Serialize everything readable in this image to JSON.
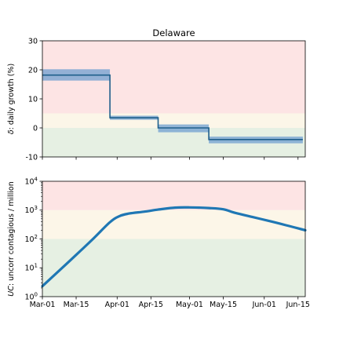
{
  "chart_data": [
    {
      "type": "line",
      "title": "Delaware",
      "ylabel_symbol": "δ",
      "ylabel_rest": ": daily growth (%)",
      "ylim": [
        -10,
        30
      ],
      "yticks": [
        -10,
        0,
        10,
        20,
        30
      ],
      "bands": [
        {
          "from": -10,
          "to": 0,
          "color": "#e6f0e3"
        },
        {
          "from": 0,
          "to": 5,
          "color": "#fcf6e8"
        },
        {
          "from": 5,
          "to": 30,
          "color": "#fde4e4"
        }
      ],
      "series": [
        {
          "line_color": "#1f5f8b",
          "band_color": "#6f9fd0",
          "steps": [
            {
              "start": "2020-03-01",
              "end": "2020-03-29",
              "value": 18.2,
              "low": 16.3,
              "high": 20.2
            },
            {
              "start": "2020-03-29",
              "end": "2020-04-18",
              "value": 3.5,
              "low": 2.8,
              "high": 4.2
            },
            {
              "start": "2020-04-18",
              "end": "2020-05-09",
              "value": 0.0,
              "low": -1.5,
              "high": 1.2
            },
            {
              "start": "2020-05-09",
              "end": "2020-06-17",
              "value": -4.0,
              "low": -5.3,
              "high": -3.0
            }
          ]
        }
      ]
    },
    {
      "type": "line",
      "ylabel_symbol": "UC",
      "ylabel_rest": ": uncorr contagious / million",
      "yscale": "log",
      "ylim": [
        1,
        10000
      ],
      "yticks": [
        {
          "value": 1,
          "base": "10",
          "exp": "0"
        },
        {
          "value": 10,
          "base": "10",
          "exp": "1"
        },
        {
          "value": 100,
          "base": "10",
          "exp": "2"
        },
        {
          "value": 1000,
          "base": "10",
          "exp": "3"
        },
        {
          "value": 10000,
          "base": "10",
          "exp": "4"
        }
      ],
      "bands": [
        {
          "from": 1,
          "to": 100,
          "color": "#e6f0e3"
        },
        {
          "from": 100,
          "to": 1000,
          "color": "#fcf6e8"
        },
        {
          "from": 1000,
          "to": 10000,
          "color": "#fde4e4"
        }
      ],
      "xlim": [
        "2020-03-01",
        "2020-06-18"
      ],
      "xticks": [
        {
          "date": "2020-03-01",
          "label": "Mar-01"
        },
        {
          "date": "2020-03-15",
          "label": "Mar-15"
        },
        {
          "date": "2020-04-01",
          "label": "Apr-01"
        },
        {
          "date": "2020-04-15",
          "label": "Apr-15"
        },
        {
          "date": "2020-05-01",
          "label": "May-01"
        },
        {
          "date": "2020-05-15",
          "label": "May-15"
        },
        {
          "date": "2020-06-01",
          "label": "Jun-01"
        },
        {
          "date": "2020-06-15",
          "label": "Jun-15"
        }
      ],
      "series": [
        {
          "line_color": "#1f77b4",
          "points": [
            {
              "x": "2020-03-01",
              "y": 2.3
            },
            {
              "x": "2020-03-08",
              "y": 8
            },
            {
              "x": "2020-03-15",
              "y": 28
            },
            {
              "x": "2020-03-22",
              "y": 100
            },
            {
              "x": "2020-03-29",
              "y": 380
            },
            {
              "x": "2020-04-02",
              "y": 620
            },
            {
              "x": "2020-04-06",
              "y": 760
            },
            {
              "x": "2020-04-12",
              "y": 880
            },
            {
              "x": "2020-04-18",
              "y": 1040
            },
            {
              "x": "2020-04-25",
              "y": 1220
            },
            {
              "x": "2020-05-01",
              "y": 1240
            },
            {
              "x": "2020-05-09",
              "y": 1180
            },
            {
              "x": "2020-05-15",
              "y": 1070
            },
            {
              "x": "2020-05-20",
              "y": 800
            },
            {
              "x": "2020-05-27",
              "y": 580
            },
            {
              "x": "2020-06-03",
              "y": 420
            },
            {
              "x": "2020-06-10",
              "y": 300
            },
            {
              "x": "2020-06-18",
              "y": 200
            }
          ]
        }
      ]
    }
  ]
}
